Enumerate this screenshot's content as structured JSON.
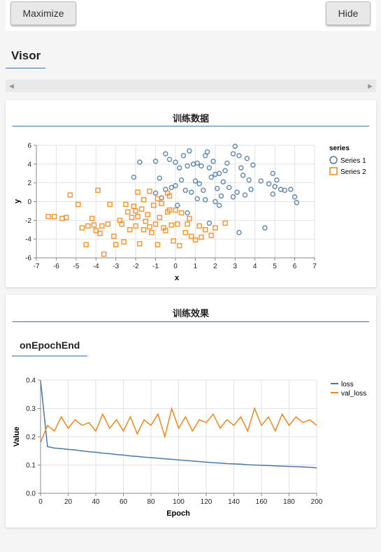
{
  "toolbar": {
    "maximize_label": "Maximize",
    "hide_label": "Hide"
  },
  "visor": {
    "title": "Visor",
    "scroll_left_icon": "◀",
    "scroll_right_icon": "▶"
  },
  "cards": {
    "scatter": {
      "title": "训练数据"
    },
    "history": {
      "title": "训练效果",
      "subtitle": "onEpochEnd"
    }
  },
  "colors": {
    "series1": "#4c78a8",
    "series2": "#f58518",
    "accent": "#3f6fb0"
  },
  "chart_data": [
    {
      "type": "scatter",
      "title": "",
      "xlabel": "x",
      "ylabel": "y",
      "xlim": [
        -7,
        7
      ],
      "ylim": [
        -6,
        6
      ],
      "xticks": [
        -7,
        -6,
        -5,
        -4,
        -3,
        -2,
        -1,
        0,
        1,
        2,
        3,
        4,
        5,
        6,
        7
      ],
      "yticks": [
        -6,
        -4,
        -2,
        0,
        2,
        4,
        6
      ],
      "grid": true,
      "legend_title": "series",
      "legend_position": "right",
      "series": [
        {
          "name": "Series 1",
          "marker": "circle",
          "points": [
            [
              -2.1,
              2.6
            ],
            [
              -1.8,
              4.2
            ],
            [
              -1.0,
              4.3
            ],
            [
              -0.8,
              2.5
            ],
            [
              -0.5,
              5.1
            ],
            [
              -0.3,
              4.5
            ],
            [
              0.0,
              4.2
            ],
            [
              0.2,
              3.6
            ],
            [
              0.4,
              4.9
            ],
            [
              0.6,
              3.8
            ],
            [
              0.7,
              5.4
            ],
            [
              0.9,
              4.0
            ],
            [
              1.1,
              4.1
            ],
            [
              1.3,
              3.8
            ],
            [
              1.5,
              4.9
            ],
            [
              1.7,
              3.6
            ],
            [
              1.9,
              4.3
            ],
            [
              1.6,
              5.3
            ],
            [
              2.0,
              2.9
            ],
            [
              2.2,
              3.0
            ],
            [
              2.5,
              3.3
            ],
            [
              2.6,
              4.1
            ],
            [
              2.9,
              5.1
            ],
            [
              3.0,
              5.9
            ],
            [
              3.2,
              4.9
            ],
            [
              3.3,
              3.6
            ],
            [
              3.4,
              2.8
            ],
            [
              3.6,
              4.6
            ],
            [
              3.7,
              2.3
            ],
            [
              3.9,
              3.9
            ],
            [
              4.3,
              2.2
            ],
            [
              4.9,
              3.0
            ],
            [
              5.0,
              1.6
            ],
            [
              5.3,
              1.3
            ],
            [
              5.8,
              1.3
            ],
            [
              6.0,
              0.5
            ],
            [
              6.1,
              -0.1
            ],
            [
              -0.2,
              1.5
            ],
            [
              0.0,
              1.7
            ],
            [
              0.3,
              2.3
            ],
            [
              0.5,
              1.2
            ],
            [
              0.8,
              1.0
            ],
            [
              1.0,
              2.2
            ],
            [
              1.2,
              1.9
            ],
            [
              1.4,
              1.2
            ],
            [
              1.5,
              0.2
            ],
            [
              1.8,
              2.6
            ],
            [
              2.0,
              0.0
            ],
            [
              2.1,
              1.4
            ],
            [
              2.3,
              0.6
            ],
            [
              2.4,
              2.1
            ],
            [
              2.7,
              1.5
            ],
            [
              2.9,
              0.5
            ],
            [
              3.1,
              1.0
            ],
            [
              3.2,
              -3.3
            ],
            [
              3.5,
              0.7
            ],
            [
              3.8,
              1.3
            ],
            [
              4.5,
              -2.8
            ],
            [
              4.7,
              1.9
            ],
            [
              4.9,
              0.8
            ],
            [
              5.1,
              2.3
            ],
            [
              5.5,
              1.2
            ],
            [
              -1.0,
              0.9
            ],
            [
              -0.7,
              0.4
            ],
            [
              -0.5,
              1.3
            ],
            [
              0.6,
              -1.2
            ],
            [
              1.7,
              -2.3
            ],
            [
              2.2,
              -0.4
            ],
            [
              0.1,
              -0.4
            ],
            [
              1.1,
              0.3
            ]
          ]
        },
        {
          "name": "Series 2",
          "marker": "square",
          "points": [
            [
              -6.4,
              -1.6
            ],
            [
              -6.1,
              -1.6
            ],
            [
              -5.5,
              -1.7
            ],
            [
              -5.3,
              0.7
            ],
            [
              -4.9,
              -0.3
            ],
            [
              -4.7,
              -2.8
            ],
            [
              -4.4,
              -2.6
            ],
            [
              -4.5,
              -4.6
            ],
            [
              -4.2,
              -1.8
            ],
            [
              -4.0,
              -3.1
            ],
            [
              -3.9,
              1.2
            ],
            [
              -3.8,
              -3.4
            ],
            [
              -3.7,
              -2.6
            ],
            [
              -3.6,
              -5.6
            ],
            [
              -3.4,
              -2.4
            ],
            [
              -3.3,
              -0.3
            ],
            [
              -3.0,
              -4.6
            ],
            [
              -2.8,
              -2.0
            ],
            [
              -2.7,
              -2.4
            ],
            [
              -2.6,
              -4.3
            ],
            [
              -2.4,
              -1.1
            ],
            [
              -2.3,
              -3.0
            ],
            [
              -2.2,
              -1.7
            ],
            [
              -2.1,
              -0.5
            ],
            [
              -2.0,
              -2.6
            ],
            [
              -1.9,
              -1.6
            ],
            [
              -1.8,
              -4.5
            ],
            [
              -1.7,
              -0.8
            ],
            [
              -1.6,
              -3.0
            ],
            [
              -1.5,
              -2.1
            ],
            [
              -1.4,
              -1.4
            ],
            [
              -1.3,
              -2.7
            ],
            [
              -1.2,
              -3.3
            ],
            [
              -1.1,
              -0.4
            ],
            [
              -1.0,
              -2.4
            ],
            [
              -0.9,
              -4.6
            ],
            [
              -0.8,
              -1.7
            ],
            [
              -0.7,
              -0.2
            ],
            [
              -0.6,
              -2.8
            ],
            [
              -0.5,
              -3.1
            ],
            [
              -0.4,
              -1.1
            ],
            [
              -0.3,
              0.6
            ],
            [
              -0.2,
              -2.5
            ],
            [
              -0.1,
              -4.2
            ],
            [
              0.0,
              -0.9
            ],
            [
              0.1,
              -2.4
            ],
            [
              0.2,
              -4.7
            ],
            [
              0.3,
              -1.2
            ],
            [
              0.5,
              -3.3
            ],
            [
              0.6,
              -2.4
            ],
            [
              0.8,
              -3.7
            ],
            [
              1.0,
              -4.1
            ],
            [
              1.2,
              -2.6
            ],
            [
              1.3,
              -3.8
            ],
            [
              1.5,
              -3.0
            ],
            [
              1.8,
              -3.6
            ],
            [
              2.0,
              -2.8
            ],
            [
              2.5,
              -2.3
            ],
            [
              -1.9,
              1.0
            ],
            [
              -2.5,
              -0.3
            ],
            [
              -0.4,
              0.9
            ],
            [
              -0.9,
              0.3
            ],
            [
              -1.3,
              1.1
            ],
            [
              -5.7,
              -1.8
            ],
            [
              -4.1,
              -2.5
            ],
            [
              -3.1,
              -3.7
            ],
            [
              -2.0,
              -1.0
            ],
            [
              -1.6,
              0.2
            ],
            [
              -0.3,
              -0.9
            ],
            [
              0.7,
              -1.8
            ]
          ]
        }
      ]
    },
    {
      "type": "line",
      "title": "",
      "xlabel": "Epoch",
      "ylabel": "Value",
      "xlim": [
        0,
        200
      ],
      "ylim": [
        0,
        0.4
      ],
      "xticks": [
        0,
        20,
        40,
        60,
        80,
        100,
        120,
        140,
        160,
        180,
        200
      ],
      "yticks": [
        0,
        0.1,
        0.2,
        0.3,
        0.4
      ],
      "grid": true,
      "legend_position": "right",
      "x": [
        0,
        5,
        10,
        15,
        20,
        25,
        30,
        35,
        40,
        45,
        50,
        55,
        60,
        65,
        70,
        75,
        80,
        85,
        90,
        95,
        100,
        105,
        110,
        115,
        120,
        125,
        130,
        135,
        140,
        145,
        150,
        155,
        160,
        165,
        170,
        175,
        180,
        185,
        190,
        195,
        200
      ],
      "series": [
        {
          "name": "loss",
          "values": [
            0.4,
            0.165,
            0.16,
            0.158,
            0.155,
            0.153,
            0.15,
            0.147,
            0.145,
            0.142,
            0.14,
            0.137,
            0.135,
            0.132,
            0.13,
            0.128,
            0.126,
            0.124,
            0.122,
            0.12,
            0.118,
            0.116,
            0.114,
            0.112,
            0.11,
            0.108,
            0.107,
            0.105,
            0.104,
            0.103,
            0.101,
            0.1,
            0.099,
            0.098,
            0.097,
            0.096,
            0.095,
            0.094,
            0.093,
            0.092,
            0.09
          ]
        },
        {
          "name": "val_loss",
          "values": [
            0.18,
            0.24,
            0.22,
            0.27,
            0.23,
            0.26,
            0.24,
            0.25,
            0.22,
            0.28,
            0.23,
            0.26,
            0.22,
            0.27,
            0.21,
            0.26,
            0.24,
            0.28,
            0.2,
            0.3,
            0.23,
            0.27,
            0.22,
            0.26,
            0.25,
            0.28,
            0.23,
            0.26,
            0.24,
            0.27,
            0.22,
            0.3,
            0.24,
            0.27,
            0.22,
            0.28,
            0.24,
            0.27,
            0.25,
            0.26,
            0.24
          ]
        }
      ]
    }
  ]
}
